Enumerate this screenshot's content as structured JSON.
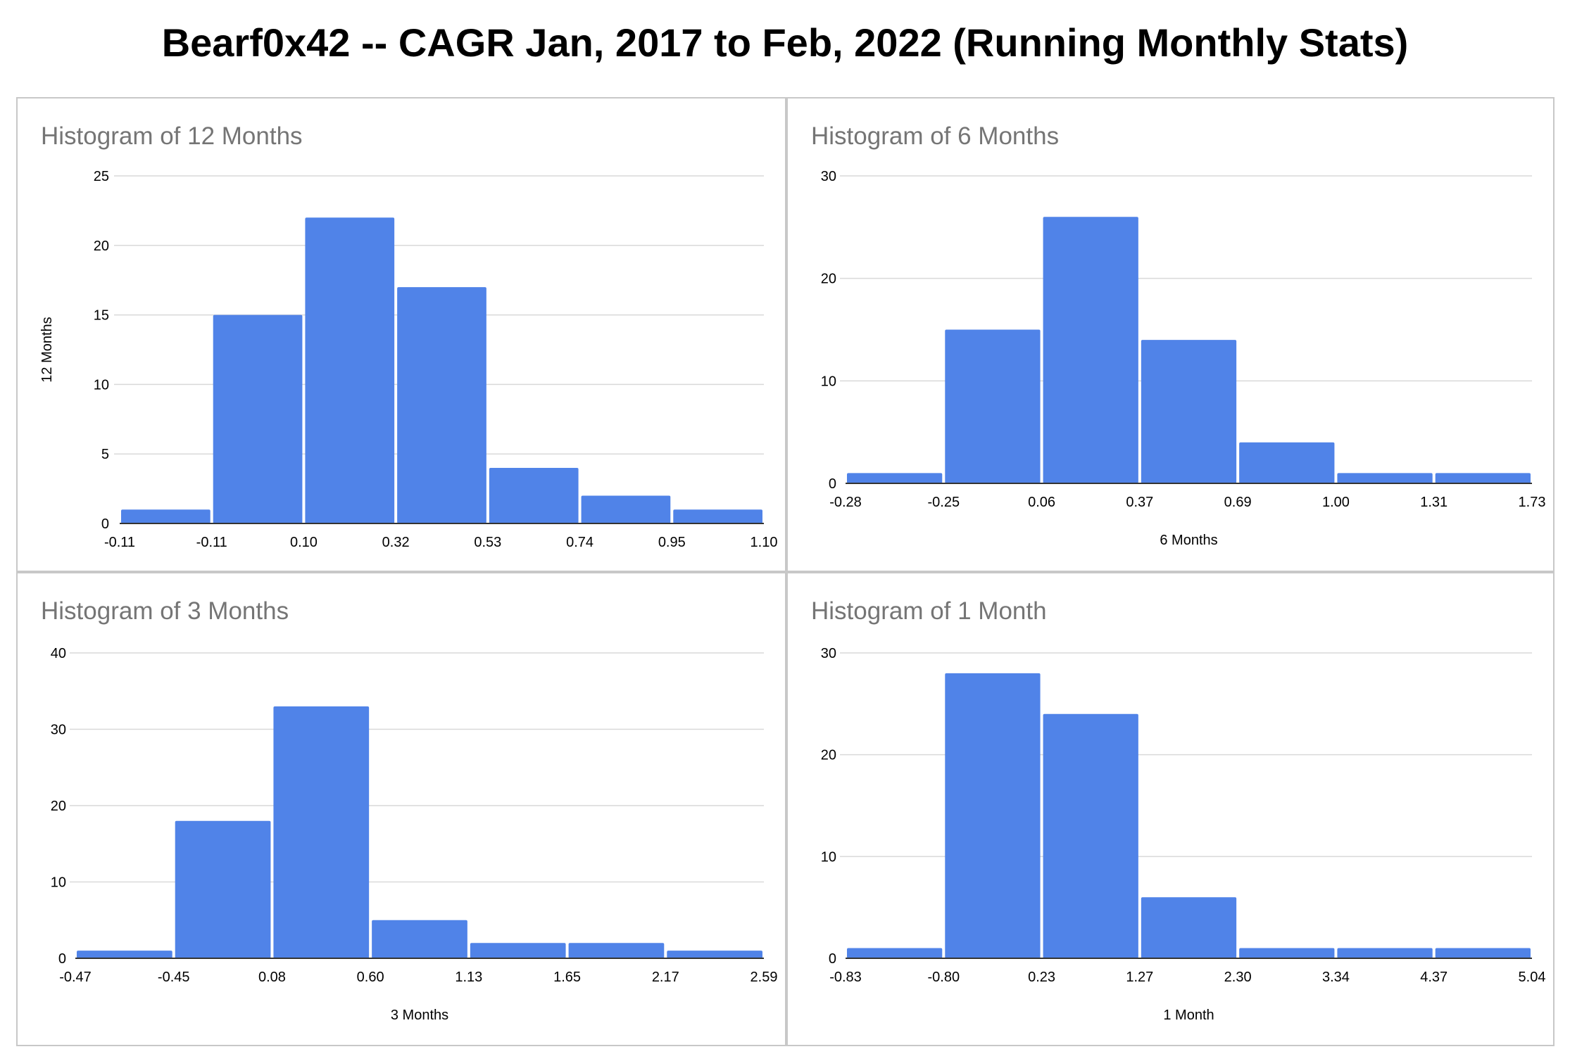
{
  "page_title": "Bearf0x42 -- CAGR Jan, 2017 to Feb, 2022 (Running Monthly Stats)",
  "colors": {
    "bar": "#5083e8",
    "grid": "#d9d9d9",
    "axis": "#333333",
    "panel_title": "#757575"
  },
  "chart_data": [
    {
      "type": "bar",
      "subtype": "histogram",
      "title": "Histogram of 12 Months",
      "xlabel": "",
      "ylabel": "12 Months",
      "ylim": [
        0,
        25
      ],
      "yticks": [
        "0",
        "5",
        "10",
        "15",
        "20",
        "25"
      ],
      "xticks": [
        "-0.11",
        "-0.11",
        "0.10",
        "0.32",
        "0.53",
        "0.74",
        "0.95",
        "1.10"
      ],
      "values": [
        1,
        15,
        22,
        17,
        4,
        2,
        1
      ],
      "gridlines": true
    },
    {
      "type": "bar",
      "subtype": "histogram",
      "title": "Histogram of 6 Months",
      "xlabel": "6 Months",
      "ylabel": "",
      "ylim": [
        0,
        30
      ],
      "yticks": [
        "0",
        "10",
        "20",
        "30"
      ],
      "xticks": [
        "-0.28",
        "-0.25",
        "0.06",
        "0.37",
        "0.69",
        "1.00",
        "1.31",
        "1.73"
      ],
      "values": [
        1,
        15,
        26,
        14,
        4,
        1,
        1
      ],
      "gridlines": true
    },
    {
      "type": "bar",
      "subtype": "histogram",
      "title": "Histogram of 3 Months",
      "xlabel": "3 Months",
      "ylabel": "",
      "ylim": [
        0,
        40
      ],
      "yticks": [
        "0",
        "10",
        "20",
        "30",
        "40"
      ],
      "xticks": [
        "-0.47",
        "-0.45",
        "0.08",
        "0.60",
        "1.13",
        "1.65",
        "2.17",
        "2.59"
      ],
      "values": [
        1,
        18,
        33,
        5,
        2,
        2,
        1
      ],
      "gridlines": true
    },
    {
      "type": "bar",
      "subtype": "histogram",
      "title": "Histogram of 1 Month",
      "xlabel": "1 Month",
      "ylabel": "",
      "ylim": [
        0,
        30
      ],
      "yticks": [
        "0",
        "10",
        "20",
        "30"
      ],
      "xticks": [
        "-0.83",
        "-0.80",
        "0.23",
        "1.27",
        "2.30",
        "3.34",
        "4.37",
        "5.04"
      ],
      "values": [
        1,
        28,
        24,
        6,
        1,
        1,
        1
      ],
      "gridlines": true
    }
  ]
}
